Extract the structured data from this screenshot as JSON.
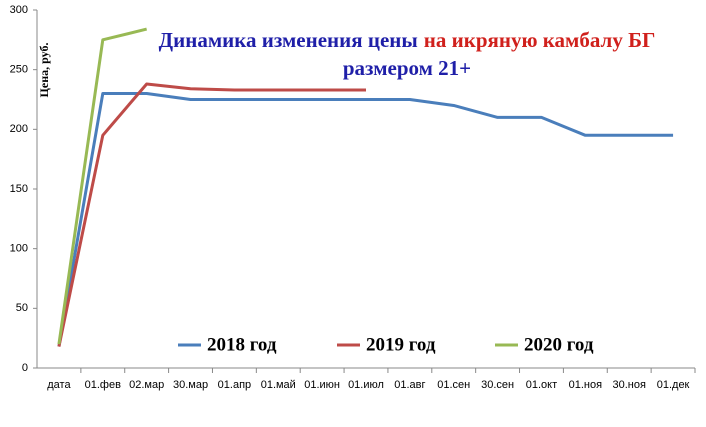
{
  "chart_data": {
    "type": "line",
    "title": [
      {
        "text": "Динамика изменения цены",
        "color": "#1f1fa8"
      },
      {
        "text": "на икряную камбалу БГ",
        "color": "#d0201c"
      },
      {
        "text": "размером 21+",
        "color": "#1f1fa8"
      }
    ],
    "y_label": "Цена, руб.",
    "categories": [
      "дата",
      "01.фев",
      "02.мар",
      "30.мар",
      "01.апр",
      "01.май",
      "01.июн",
      "01.июл",
      "01.авг",
      "01.сен",
      "30.сен",
      "01.окт",
      "01.ноя",
      "30.ноя",
      "01.дек"
    ],
    "series": [
      {
        "name": "2018 год",
        "color": "#4a7ebb",
        "values": [
          18,
          230,
          230,
          225,
          225,
          225,
          225,
          225,
          225,
          220,
          210,
          210,
          195,
          195,
          195
        ]
      },
      {
        "name": "2019 год",
        "color": "#be4b48",
        "values": [
          18,
          195,
          238,
          234,
          233,
          233,
          233,
          233,
          null,
          null,
          null,
          null,
          null,
          null,
          null
        ]
      },
      {
        "name": "2020 год",
        "color": "#98b954",
        "values": [
          20,
          275,
          284,
          null,
          null,
          null,
          null,
          null,
          null,
          null,
          null,
          null,
          null,
          null,
          null
        ]
      }
    ],
    "ylim": [
      0,
      300
    ],
    "yticks": [
      0,
      50,
      100,
      150,
      200,
      250,
      300
    ],
    "grid": false
  }
}
